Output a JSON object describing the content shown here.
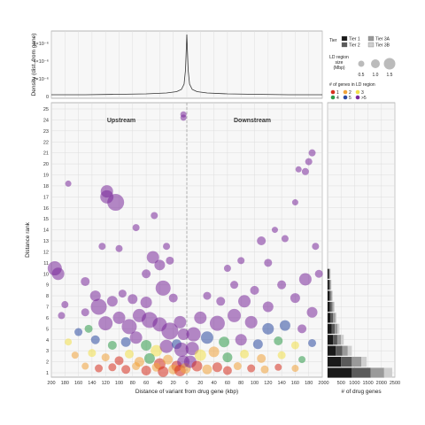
{
  "figure": {
    "main_xlabel": "Distance of variant from drug gene (kbp)",
    "main_ylabel": "Distance rank",
    "top_ylabel": "Density (dist. from gene)",
    "top_yticks": [
      "0",
      "2×10⁻⁶",
      "4×10⁻⁶",
      "6×10⁻⁶"
    ],
    "side_xlabel": "# of drug genes",
    "annot_upstream": "Upstream",
    "annot_downstream": "Downstream"
  },
  "legend": {
    "tier_title": "Tier",
    "tiers": [
      {
        "label": "Tier 1",
        "color": "#1a1a1a"
      },
      {
        "label": "Tier 3A",
        "color": "#9a9a9a"
      },
      {
        "label": "Tier 2",
        "color": "#5a5a5a"
      },
      {
        "label": "Tier 3B",
        "color": "#cfcfcf"
      }
    ],
    "size_title_1": "LD region",
    "size_title_2": "size",
    "size_title_3": "(Mbp)",
    "size_values": [
      "0.5",
      "1.0",
      "1.5"
    ],
    "genes_title": "# of genes in LD region",
    "genes": [
      {
        "label": "1",
        "color": "#d62f1f"
      },
      {
        "label": "2",
        "color": "#f0a33a"
      },
      {
        "label": "3",
        "color": "#f2e04a"
      },
      {
        "label": "4",
        "color": "#2f9a4a"
      },
      {
        "label": "5",
        "color": "#2c4aa0"
      },
      {
        "label": ">5",
        "color": "#7a2a9a"
      }
    ]
  },
  "chart_data": [
    {
      "type": "scatter",
      "panel": "main",
      "xlabel": "Distance of variant from drug gene (kbp)",
      "ylabel": "Distance rank",
      "xlim": [
        -200,
        200
      ],
      "ylim": [
        1,
        25
      ],
      "xticks": [
        -200,
        -180,
        -160,
        -140,
        -120,
        -100,
        -80,
        -60,
        -40,
        -20,
        0,
        20,
        40,
        60,
        80,
        100,
        120,
        140,
        160,
        180,
        200
      ],
      "xtick_labels": [
        "200",
        "180",
        "160",
        "140",
        "120",
        "100",
        "80",
        "60",
        "40",
        "20",
        "0",
        "20",
        "40",
        "60",
        "80",
        "100",
        "120",
        "140",
        "160",
        "180",
        "200"
      ],
      "yticks": [
        1,
        2,
        3,
        4,
        5,
        6,
        7,
        8,
        9,
        10,
        11,
        12,
        13,
        14,
        15,
        16,
        17,
        18,
        19,
        20,
        21,
        22,
        23,
        24,
        25
      ],
      "points": [
        {
          "x": -5,
          "y": 24.5,
          "s": 0.3,
          "g": ">5"
        },
        {
          "x": -5,
          "y": 24.2,
          "s": 0.3,
          "g": ">5"
        },
        {
          "x": -175,
          "y": 18.2,
          "s": 0.3,
          "g": ">5"
        },
        {
          "x": -118,
          "y": 17.5,
          "s": 1.0,
          "g": ">5"
        },
        {
          "x": -118,
          "y": 17.0,
          "s": 1.1,
          "g": ">5"
        },
        {
          "x": -105,
          "y": 16.5,
          "s": 1.5,
          "g": ">5"
        },
        {
          "x": -48,
          "y": 15.3,
          "s": 0.4,
          "g": ">5"
        },
        {
          "x": -75,
          "y": 14.2,
          "s": 0.4,
          "g": ">5"
        },
        {
          "x": -125,
          "y": 12.5,
          "s": 0.4,
          "g": ">5"
        },
        {
          "x": -100,
          "y": 12.3,
          "s": 0.4,
          "g": ">5"
        },
        {
          "x": -50,
          "y": 11.5,
          "s": 1.0,
          "g": ">5"
        },
        {
          "x": -30,
          "y": 12.5,
          "s": 0.4,
          "g": ">5"
        },
        {
          "x": -195,
          "y": 10.5,
          "s": 1.2,
          "g": ">5"
        },
        {
          "x": -190,
          "y": 10.0,
          "s": 1.0,
          "g": ">5"
        },
        {
          "x": -150,
          "y": 9.3,
          "s": 0.6,
          "g": ">5"
        },
        {
          "x": -60,
          "y": 10.0,
          "s": 0.6,
          "g": ">5"
        },
        {
          "x": -40,
          "y": 10.8,
          "s": 0.8,
          "g": ">5"
        },
        {
          "x": -25,
          "y": 11.2,
          "s": 0.5,
          "g": ">5"
        },
        {
          "x": -135,
          "y": 8.0,
          "s": 0.8,
          "g": ">5"
        },
        {
          "x": -130,
          "y": 7.0,
          "s": 1.4,
          "g": ">5"
        },
        {
          "x": -110,
          "y": 7.5,
          "s": 0.8,
          "g": ">5"
        },
        {
          "x": -95,
          "y": 8.2,
          "s": 0.5,
          "g": ">5"
        },
        {
          "x": -80,
          "y": 7.7,
          "s": 0.7,
          "g": ">5"
        },
        {
          "x": -60,
          "y": 7.4,
          "s": 0.9,
          "g": ">5"
        },
        {
          "x": -35,
          "y": 8.7,
          "s": 1.3,
          "g": ">5"
        },
        {
          "x": -20,
          "y": 7.8,
          "s": 0.6,
          "g": ">5"
        },
        {
          "x": -185,
          "y": 6.2,
          "s": 0.4,
          "g": ">5"
        },
        {
          "x": -180,
          "y": 7.2,
          "s": 0.4,
          "g": ">5"
        },
        {
          "x": -150,
          "y": 6.5,
          "s": 0.5,
          "g": ">5"
        },
        {
          "x": -120,
          "y": 5.5,
          "s": 1.2,
          "g": ">5"
        },
        {
          "x": -100,
          "y": 6.0,
          "s": 1.0,
          "g": ">5"
        },
        {
          "x": -85,
          "y": 5.2,
          "s": 1.3,
          "g": ">5"
        },
        {
          "x": -70,
          "y": 6.2,
          "s": 1.1,
          "g": ">5"
        },
        {
          "x": -55,
          "y": 5.8,
          "s": 1.4,
          "g": ">5"
        },
        {
          "x": -40,
          "y": 5.4,
          "s": 1.2,
          "g": ">5"
        },
        {
          "x": -25,
          "y": 4.8,
          "s": 1.5,
          "g": ">5"
        },
        {
          "x": -10,
          "y": 5.6,
          "s": 1.0,
          "g": ">5"
        },
        {
          "x": -5,
          "y": 4.5,
          "s": 0.9,
          "g": ">5"
        },
        {
          "x": -160,
          "y": 4.7,
          "s": 0.5,
          "g": "5"
        },
        {
          "x": -145,
          "y": 5.0,
          "s": 0.5,
          "g": "4"
        },
        {
          "x": -175,
          "y": 3.8,
          "s": 0.4,
          "g": "3"
        },
        {
          "x": -135,
          "y": 4.0,
          "s": 0.6,
          "g": "5"
        },
        {
          "x": -110,
          "y": 3.5,
          "s": 0.6,
          "g": "4"
        },
        {
          "x": -90,
          "y": 3.8,
          "s": 0.7,
          "g": "5"
        },
        {
          "x": -75,
          "y": 4.2,
          "s": 1.0,
          "g": ">5"
        },
        {
          "x": -60,
          "y": 3.5,
          "s": 0.8,
          "g": "4"
        },
        {
          "x": -45,
          "y": 3.0,
          "s": 0.9,
          "g": "3"
        },
        {
          "x": -30,
          "y": 3.4,
          "s": 1.1,
          "g": ">5"
        },
        {
          "x": -15,
          "y": 3.6,
          "s": 0.7,
          "g": "5"
        },
        {
          "x": -8,
          "y": 3.1,
          "s": 1.2,
          "g": ">5"
        },
        {
          "x": -165,
          "y": 2.6,
          "s": 0.4,
          "g": "2"
        },
        {
          "x": -140,
          "y": 2.8,
          "s": 0.5,
          "g": "3"
        },
        {
          "x": -120,
          "y": 2.4,
          "s": 0.5,
          "g": "2"
        },
        {
          "x": -100,
          "y": 2.1,
          "s": 0.6,
          "g": "1"
        },
        {
          "x": -85,
          "y": 2.7,
          "s": 0.6,
          "g": "3"
        },
        {
          "x": -70,
          "y": 2.0,
          "s": 0.7,
          "g": "2"
        },
        {
          "x": -55,
          "y": 2.3,
          "s": 0.8,
          "g": "4"
        },
        {
          "x": -40,
          "y": 1.8,
          "s": 0.9,
          "g": "1"
        },
        {
          "x": -28,
          "y": 2.2,
          "s": 0.7,
          "g": "2"
        },
        {
          "x": -15,
          "y": 1.6,
          "s": 0.8,
          "g": "1"
        },
        {
          "x": -5,
          "y": 2.0,
          "s": 1.0,
          "g": ">5"
        },
        {
          "x": -150,
          "y": 1.6,
          "s": 0.4,
          "g": "2"
        },
        {
          "x": -130,
          "y": 1.4,
          "s": 0.5,
          "g": "1"
        },
        {
          "x": -110,
          "y": 1.5,
          "s": 0.5,
          "g": "1"
        },
        {
          "x": -90,
          "y": 1.3,
          "s": 0.6,
          "g": "1"
        },
        {
          "x": -75,
          "y": 1.6,
          "s": 0.5,
          "g": "2"
        },
        {
          "x": -60,
          "y": 1.2,
          "s": 0.7,
          "g": "1"
        },
        {
          "x": -45,
          "y": 1.5,
          "s": 0.6,
          "g": "2"
        },
        {
          "x": -35,
          "y": 1.1,
          "s": 0.8,
          "g": "1"
        },
        {
          "x": -20,
          "y": 1.3,
          "s": 0.7,
          "g": "2"
        },
        {
          "x": -10,
          "y": 1.2,
          "s": 0.9,
          "g": "1"
        },
        {
          "x": -2,
          "y": 1.4,
          "s": 0.8,
          "g": "2"
        },
        {
          "x": 180,
          "y": 20.2,
          "s": 0.4,
          "g": ">5"
        },
        {
          "x": 175,
          "y": 19.3,
          "s": 0.4,
          "g": ">5"
        },
        {
          "x": 165,
          "y": 19.5,
          "s": 0.3,
          "g": ">5"
        },
        {
          "x": 185,
          "y": 21.0,
          "s": 0.4,
          "g": ">5"
        },
        {
          "x": 160,
          "y": 16.5,
          "s": 0.3,
          "g": ">5"
        },
        {
          "x": 130,
          "y": 14.0,
          "s": 0.3,
          "g": ">5"
        },
        {
          "x": 110,
          "y": 13.0,
          "s": 0.6,
          "g": ">5"
        },
        {
          "x": 145,
          "y": 13.2,
          "s": 0.4,
          "g": ">5"
        },
        {
          "x": 190,
          "y": 12.5,
          "s": 0.4,
          "g": ">5"
        },
        {
          "x": 120,
          "y": 11.0,
          "s": 0.5,
          "g": ">5"
        },
        {
          "x": 80,
          "y": 11.2,
          "s": 0.4,
          "g": ">5"
        },
        {
          "x": 60,
          "y": 10.5,
          "s": 0.4,
          "g": ">5"
        },
        {
          "x": 195,
          "y": 10.0,
          "s": 0.5,
          "g": ">5"
        },
        {
          "x": 175,
          "y": 9.5,
          "s": 1.0,
          "g": ">5"
        },
        {
          "x": 140,
          "y": 9.0,
          "s": 0.6,
          "g": ">5"
        },
        {
          "x": 100,
          "y": 8.5,
          "s": 0.6,
          "g": ">5"
        },
        {
          "x": 70,
          "y": 9.0,
          "s": 0.5,
          "g": ">5"
        },
        {
          "x": 30,
          "y": 8.0,
          "s": 0.5,
          "g": ">5"
        },
        {
          "x": 50,
          "y": 7.5,
          "s": 0.6,
          "g": ">5"
        },
        {
          "x": 85,
          "y": 7.5,
          "s": 1.0,
          "g": ">5"
        },
        {
          "x": 120,
          "y": 7.0,
          "s": 0.8,
          "g": ">5"
        },
        {
          "x": 160,
          "y": 7.8,
          "s": 0.7,
          "g": ">5"
        },
        {
          "x": 185,
          "y": 6.5,
          "s": 0.8,
          "g": ">5"
        },
        {
          "x": 20,
          "y": 6.0,
          "s": 1.0,
          "g": ">5"
        },
        {
          "x": 45,
          "y": 5.5,
          "s": 1.3,
          "g": ">5"
        },
        {
          "x": 70,
          "y": 6.2,
          "s": 1.1,
          "g": ">5"
        },
        {
          "x": 95,
          "y": 5.6,
          "s": 1.0,
          "g": ">5"
        },
        {
          "x": 120,
          "y": 5.0,
          "s": 0.9,
          "g": "5"
        },
        {
          "x": 145,
          "y": 5.3,
          "s": 0.8,
          "g": "5"
        },
        {
          "x": 170,
          "y": 5.0,
          "s": 0.6,
          "g": ">5"
        },
        {
          "x": 10,
          "y": 4.5,
          "s": 1.2,
          "g": ">5"
        },
        {
          "x": 30,
          "y": 4.2,
          "s": 1.0,
          "g": "5"
        },
        {
          "x": 55,
          "y": 3.8,
          "s": 0.8,
          "g": "4"
        },
        {
          "x": 80,
          "y": 4.0,
          "s": 0.9,
          "g": ">5"
        },
        {
          "x": 105,
          "y": 3.6,
          "s": 0.7,
          "g": "5"
        },
        {
          "x": 135,
          "y": 3.9,
          "s": 0.6,
          "g": "4"
        },
        {
          "x": 160,
          "y": 3.5,
          "s": 0.5,
          "g": "3"
        },
        {
          "x": 185,
          "y": 3.7,
          "s": 0.5,
          "g": "5"
        },
        {
          "x": 8,
          "y": 3.2,
          "s": 1.1,
          "g": ">5"
        },
        {
          "x": 20,
          "y": 2.6,
          "s": 0.9,
          "g": "3"
        },
        {
          "x": 40,
          "y": 2.9,
          "s": 0.8,
          "g": "2"
        },
        {
          "x": 60,
          "y": 2.4,
          "s": 0.7,
          "g": "4"
        },
        {
          "x": 85,
          "y": 2.7,
          "s": 0.6,
          "g": "3"
        },
        {
          "x": 110,
          "y": 2.3,
          "s": 0.6,
          "g": "2"
        },
        {
          "x": 140,
          "y": 2.6,
          "s": 0.5,
          "g": "3"
        },
        {
          "x": 170,
          "y": 2.2,
          "s": 0.4,
          "g": "4"
        },
        {
          "x": 5,
          "y": 2.0,
          "s": 1.0,
          "g": ">5"
        },
        {
          "x": 15,
          "y": 1.6,
          "s": 0.8,
          "g": "1"
        },
        {
          "x": 30,
          "y": 1.3,
          "s": 0.7,
          "g": "2"
        },
        {
          "x": 45,
          "y": 1.5,
          "s": 0.7,
          "g": "1"
        },
        {
          "x": 60,
          "y": 1.2,
          "s": 0.6,
          "g": "1"
        },
        {
          "x": 75,
          "y": 1.6,
          "s": 0.5,
          "g": "2"
        },
        {
          "x": 95,
          "y": 1.4,
          "s": 0.5,
          "g": "1"
        },
        {
          "x": 115,
          "y": 1.3,
          "s": 0.5,
          "g": "2"
        },
        {
          "x": 135,
          "y": 1.5,
          "s": 0.4,
          "g": "1"
        },
        {
          "x": 160,
          "y": 1.4,
          "s": 0.4,
          "g": "2"
        }
      ]
    },
    {
      "type": "line",
      "panel": "top-density",
      "ylabel": "Density (dist. from gene)",
      "x": [
        -200,
        -150,
        -100,
        -60,
        -30,
        -15,
        -8,
        -4,
        -2,
        0,
        2,
        4,
        8,
        15,
        30,
        60,
        100,
        150,
        200
      ],
      "y": [
        0.2,
        0.2,
        0.25,
        0.3,
        0.4,
        0.55,
        0.8,
        1.4,
        3.0,
        7.0,
        3.0,
        1.4,
        0.8,
        0.55,
        0.4,
        0.3,
        0.25,
        0.2,
        0.2
      ],
      "xlim": [
        -200,
        200
      ],
      "ylim": [
        0,
        7
      ]
    },
    {
      "type": "bar",
      "panel": "side-histogram",
      "orientation": "horizontal-stacked",
      "xlabel": "# of drug genes",
      "xticks": [
        0,
        500,
        1000,
        1500,
        2000,
        2500
      ],
      "xlim": [
        0,
        2500
      ],
      "categories": [
        1,
        2,
        3,
        4,
        5,
        6,
        7,
        8,
        9,
        10
      ],
      "series": [
        {
          "name": "Tier 1",
          "values": [
            900,
            500,
            300,
            200,
            150,
            110,
            90,
            70,
            50,
            40
          ]
        },
        {
          "name": "Tier 2",
          "values": [
            700,
            400,
            250,
            160,
            120,
            90,
            70,
            50,
            40,
            30
          ]
        },
        {
          "name": "Tier 3A",
          "values": [
            500,
            350,
            200,
            140,
            100,
            80,
            60,
            40,
            30,
            25
          ]
        },
        {
          "name": "Tier 3B",
          "values": [
            300,
            200,
            150,
            100,
            70,
            50,
            40,
            30,
            20,
            15
          ]
        }
      ]
    }
  ]
}
